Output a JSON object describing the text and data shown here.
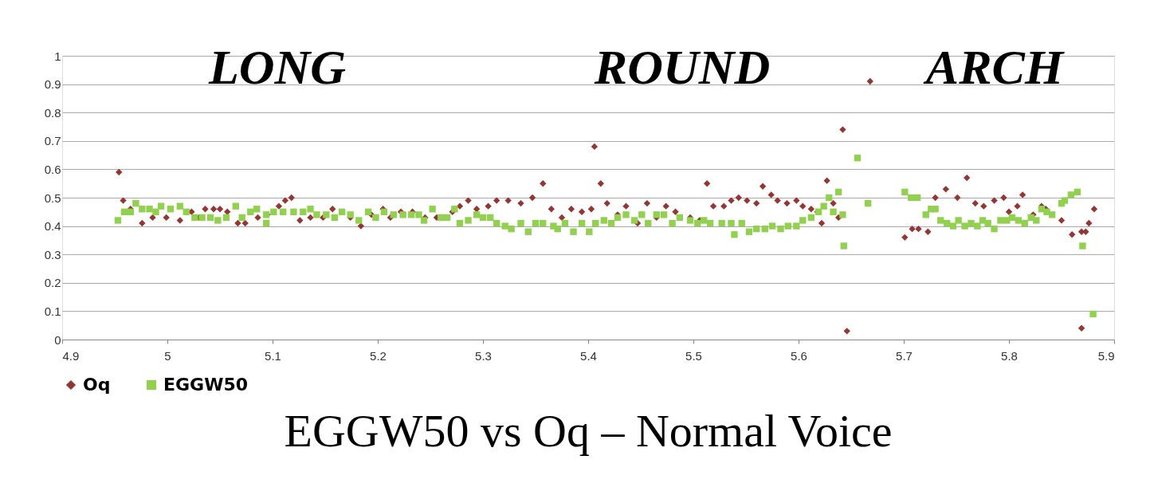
{
  "chart_data": {
    "type": "scatter",
    "title": "EGGW50 vs Oq – Normal Voice",
    "annotations": [
      "LONG",
      "ROUND",
      "ARCH"
    ],
    "xlim": [
      4.9,
      5.9
    ],
    "xticks": [
      4.9,
      5,
      5.1,
      5.2,
      5.3,
      5.4,
      5.5,
      5.6,
      5.7,
      5.8,
      5.9
    ],
    "ylim": [
      0,
      1
    ],
    "yticks": [
      0,
      0.1,
      0.2,
      0.3,
      0.4,
      0.5,
      0.6,
      0.7,
      0.8,
      0.9,
      1
    ],
    "grid": "y",
    "legend": "bottom",
    "series": [
      {
        "name": "Oq",
        "color": "#943634",
        "marker": "diamond",
        "x": [
          4.954,
          4.958,
          4.965,
          4.976,
          4.986,
          4.999,
          5.012,
          5.023,
          5.03,
          5.036,
          5.044,
          5.05,
          5.057,
          5.067,
          5.074,
          5.086,
          5.095,
          5.106,
          5.112,
          5.118,
          5.126,
          5.136,
          5.148,
          5.157,
          5.174,
          5.184,
          5.194,
          5.205,
          5.212,
          5.222,
          5.233,
          5.245,
          5.256,
          5.271,
          5.278,
          5.286,
          5.294,
          5.305,
          5.313,
          5.324,
          5.336,
          5.347,
          5.357,
          5.365,
          5.375,
          5.384,
          5.394,
          5.403,
          5.406,
          5.412,
          5.418,
          5.428,
          5.436,
          5.447,
          5.456,
          5.465,
          5.474,
          5.483,
          5.497,
          5.506,
          5.513,
          5.519,
          5.529,
          5.536,
          5.543,
          5.551,
          5.56,
          5.566,
          5.574,
          5.58,
          5.589,
          5.598,
          5.604,
          5.612,
          5.618,
          5.622,
          5.627,
          5.633,
          5.638,
          5.642,
          5.646,
          5.668,
          5.701,
          5.708,
          5.714,
          5.723,
          5.73,
          5.74,
          5.751,
          5.76,
          5.768,
          5.776,
          5.786,
          5.795,
          5.8,
          5.808,
          5.813,
          5.823,
          5.831,
          5.835,
          5.85,
          5.86,
          5.869,
          5.873,
          5.876,
          5.869,
          5.881
        ],
        "values": [
          0.59,
          0.49,
          0.46,
          0.41,
          0.43,
          0.43,
          0.42,
          0.45,
          0.43,
          0.46,
          0.46,
          0.46,
          0.45,
          0.41,
          0.41,
          0.43,
          0.44,
          0.47,
          0.49,
          0.5,
          0.42,
          0.43,
          0.43,
          0.46,
          0.43,
          0.4,
          0.44,
          0.46,
          0.43,
          0.45,
          0.45,
          0.43,
          0.43,
          0.45,
          0.47,
          0.49,
          0.46,
          0.47,
          0.49,
          0.49,
          0.48,
          0.5,
          0.55,
          0.46,
          0.43,
          0.46,
          0.45,
          0.46,
          0.68,
          0.55,
          0.48,
          0.44,
          0.47,
          0.41,
          0.48,
          0.43,
          0.47,
          0.45,
          0.43,
          0.42,
          0.55,
          0.47,
          0.47,
          0.49,
          0.5,
          0.49,
          0.48,
          0.54,
          0.51,
          0.49,
          0.48,
          0.49,
          0.47,
          0.46,
          0.45,
          0.41,
          0.56,
          0.48,
          0.43,
          0.74,
          0.03,
          0.91,
          0.36,
          0.39,
          0.39,
          0.38,
          0.5,
          0.53,
          0.5,
          0.57,
          0.48,
          0.47,
          0.49,
          0.5,
          0.45,
          0.47,
          0.51,
          0.44,
          0.47,
          0.46,
          0.42,
          0.37,
          0.38,
          0.38,
          0.41,
          0.04,
          0.46
        ]
      },
      {
        "name": "EGGW50",
        "color": "#92d050",
        "marker": "square",
        "x": [
          4.953,
          4.959,
          4.965,
          4.97,
          4.976,
          4.983,
          4.989,
          4.994,
          5.003,
          5.012,
          5.018,
          5.026,
          5.033,
          5.041,
          5.048,
          5.056,
          5.065,
          5.071,
          5.079,
          5.085,
          5.094,
          5.094,
          5.101,
          5.11,
          5.12,
          5.129,
          5.136,
          5.142,
          5.151,
          5.159,
          5.166,
          5.174,
          5.182,
          5.191,
          5.198,
          5.206,
          5.215,
          5.224,
          5.232,
          5.239,
          5.244,
          5.252,
          5.26,
          5.266,
          5.273,
          5.278,
          5.286,
          5.294,
          5.3,
          5.307,
          5.313,
          5.321,
          5.327,
          5.336,
          5.343,
          5.35,
          5.357,
          5.367,
          5.371,
          5.378,
          5.386,
          5.394,
          5.401,
          5.407,
          5.415,
          5.422,
          5.428,
          5.436,
          5.444,
          5.451,
          5.457,
          5.465,
          5.472,
          5.48,
          5.487,
          5.497,
          5.504,
          5.51,
          5.516,
          5.527,
          5.536,
          5.539,
          5.546,
          5.553,
          5.56,
          5.568,
          5.575,
          5.583,
          5.59,
          5.598,
          5.604,
          5.612,
          5.619,
          5.624,
          5.629,
          5.633,
          5.638,
          5.642,
          5.643,
          5.656,
          5.666,
          5.701,
          5.707,
          5.713,
          5.721,
          5.726,
          5.73,
          5.735,
          5.741,
          5.747,
          5.752,
          5.758,
          5.764,
          5.77,
          5.775,
          5.78,
          5.786,
          5.792,
          5.798,
          5.803,
          5.809,
          5.815,
          5.821,
          5.826,
          5.831,
          5.836,
          5.841,
          5.85,
          5.853,
          5.859,
          5.865,
          5.87,
          5.88
        ],
        "values": [
          0.42,
          0.45,
          0.45,
          0.48,
          0.46,
          0.46,
          0.45,
          0.47,
          0.46,
          0.47,
          0.45,
          0.43,
          0.43,
          0.43,
          0.42,
          0.43,
          0.47,
          0.43,
          0.45,
          0.46,
          0.44,
          0.41,
          0.45,
          0.45,
          0.45,
          0.45,
          0.46,
          0.44,
          0.44,
          0.43,
          0.45,
          0.44,
          0.42,
          0.45,
          0.43,
          0.45,
          0.44,
          0.44,
          0.44,
          0.44,
          0.42,
          0.46,
          0.43,
          0.43,
          0.46,
          0.41,
          0.42,
          0.44,
          0.43,
          0.43,
          0.41,
          0.4,
          0.39,
          0.41,
          0.38,
          0.41,
          0.41,
          0.4,
          0.39,
          0.41,
          0.38,
          0.41,
          0.38,
          0.41,
          0.42,
          0.41,
          0.43,
          0.44,
          0.42,
          0.44,
          0.41,
          0.44,
          0.44,
          0.41,
          0.43,
          0.42,
          0.41,
          0.42,
          0.41,
          0.41,
          0.41,
          0.37,
          0.41,
          0.38,
          0.39,
          0.39,
          0.4,
          0.39,
          0.4,
          0.4,
          0.42,
          0.43,
          0.45,
          0.47,
          0.5,
          0.45,
          0.52,
          0.44,
          0.33,
          0.64,
          0.48,
          0.52,
          0.5,
          0.5,
          0.44,
          0.46,
          0.46,
          0.42,
          0.41,
          0.4,
          0.42,
          0.4,
          0.41,
          0.4,
          0.42,
          0.41,
          0.39,
          0.42,
          0.42,
          0.43,
          0.42,
          0.41,
          0.43,
          0.42,
          0.46,
          0.45,
          0.44,
          0.48,
          0.49,
          0.51,
          0.52,
          0.33,
          0.09
        ]
      }
    ]
  }
}
